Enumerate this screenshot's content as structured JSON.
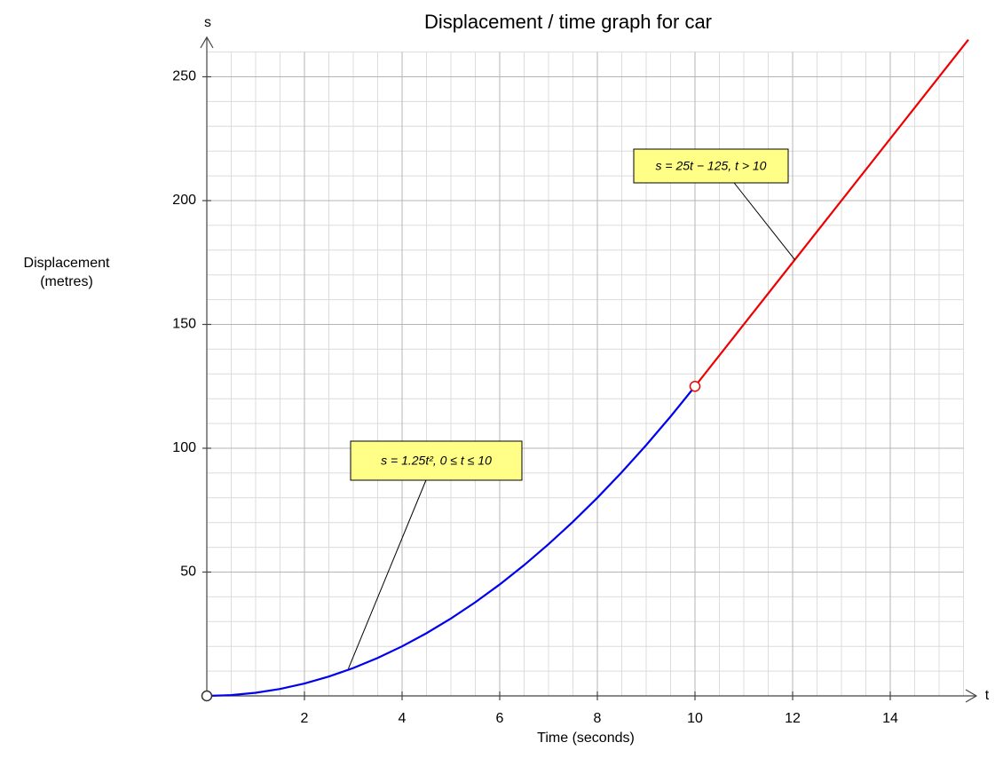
{
  "chart_data": {
    "type": "line",
    "title": "Displacement / time graph for car",
    "xlabel": "Time (seconds)",
    "ylabel": [
      "Displacement",
      "(metres)"
    ],
    "x_axis_name": "t",
    "y_axis_name": "s",
    "xlim": [
      0,
      15.5
    ],
    "ylim": [
      0,
      260
    ],
    "xticks": [
      2,
      4,
      6,
      8,
      10,
      12,
      14
    ],
    "yticks": [
      50,
      100,
      150,
      200,
      250
    ],
    "grid": true,
    "grid_minor": {
      "x": 0.5,
      "y": 10
    },
    "series": [
      {
        "color": "#0000ee",
        "x": [
          0,
          0.5,
          1,
          1.5,
          2,
          2.5,
          3,
          3.5,
          4,
          4.5,
          5,
          5.5,
          6,
          6.5,
          7,
          7.5,
          8,
          8.5,
          9,
          9.5,
          10
        ],
        "values": [
          0,
          0.3125,
          1.25,
          2.8125,
          5,
          7.8125,
          11.25,
          15.3125,
          20,
          25.3125,
          31.25,
          37.8125,
          45,
          52.8125,
          61.25,
          70.3125,
          80,
          90.3125,
          101.25,
          112.8125,
          125
        ]
      },
      {
        "color": "#ee0000",
        "x": [
          10,
          15.6
        ],
        "values": [
          125,
          265
        ]
      }
    ],
    "points": [
      {
        "x": 0,
        "y": 0,
        "color": "#333333"
      },
      {
        "x": 10,
        "y": 125,
        "color": "#ee0000"
      }
    ],
    "annotations": [
      {
        "text": "s = 1.25t², 0 ≤ t ≤ 10",
        "x": 2.9,
        "y": 11
      },
      {
        "text": "s = 25t − 125, t > 10",
        "x": 12.05,
        "y": 176
      }
    ]
  }
}
